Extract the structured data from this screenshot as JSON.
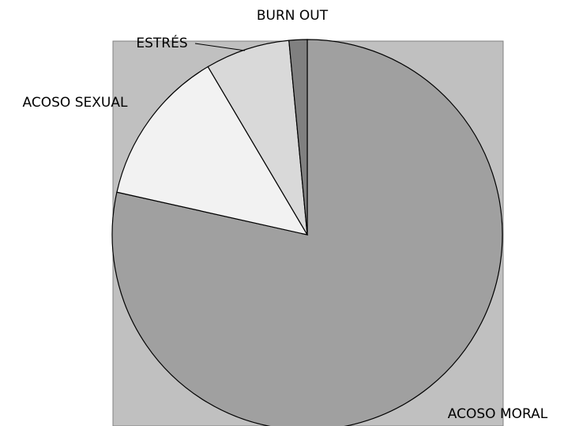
{
  "chart_data": {
    "type": "pie",
    "categories": [
      "ACOSO MORAL",
      "ACOSO SEXUAL",
      "ESTRÉS",
      "BURN OUT"
    ],
    "values": [
      78.5,
      13,
      7,
      1.5
    ],
    "colors": [
      "#a0a0a0",
      "#f2f2f2",
      "#d9d9d9",
      "#808080"
    ],
    "plot_background": "#c0c0c0"
  }
}
